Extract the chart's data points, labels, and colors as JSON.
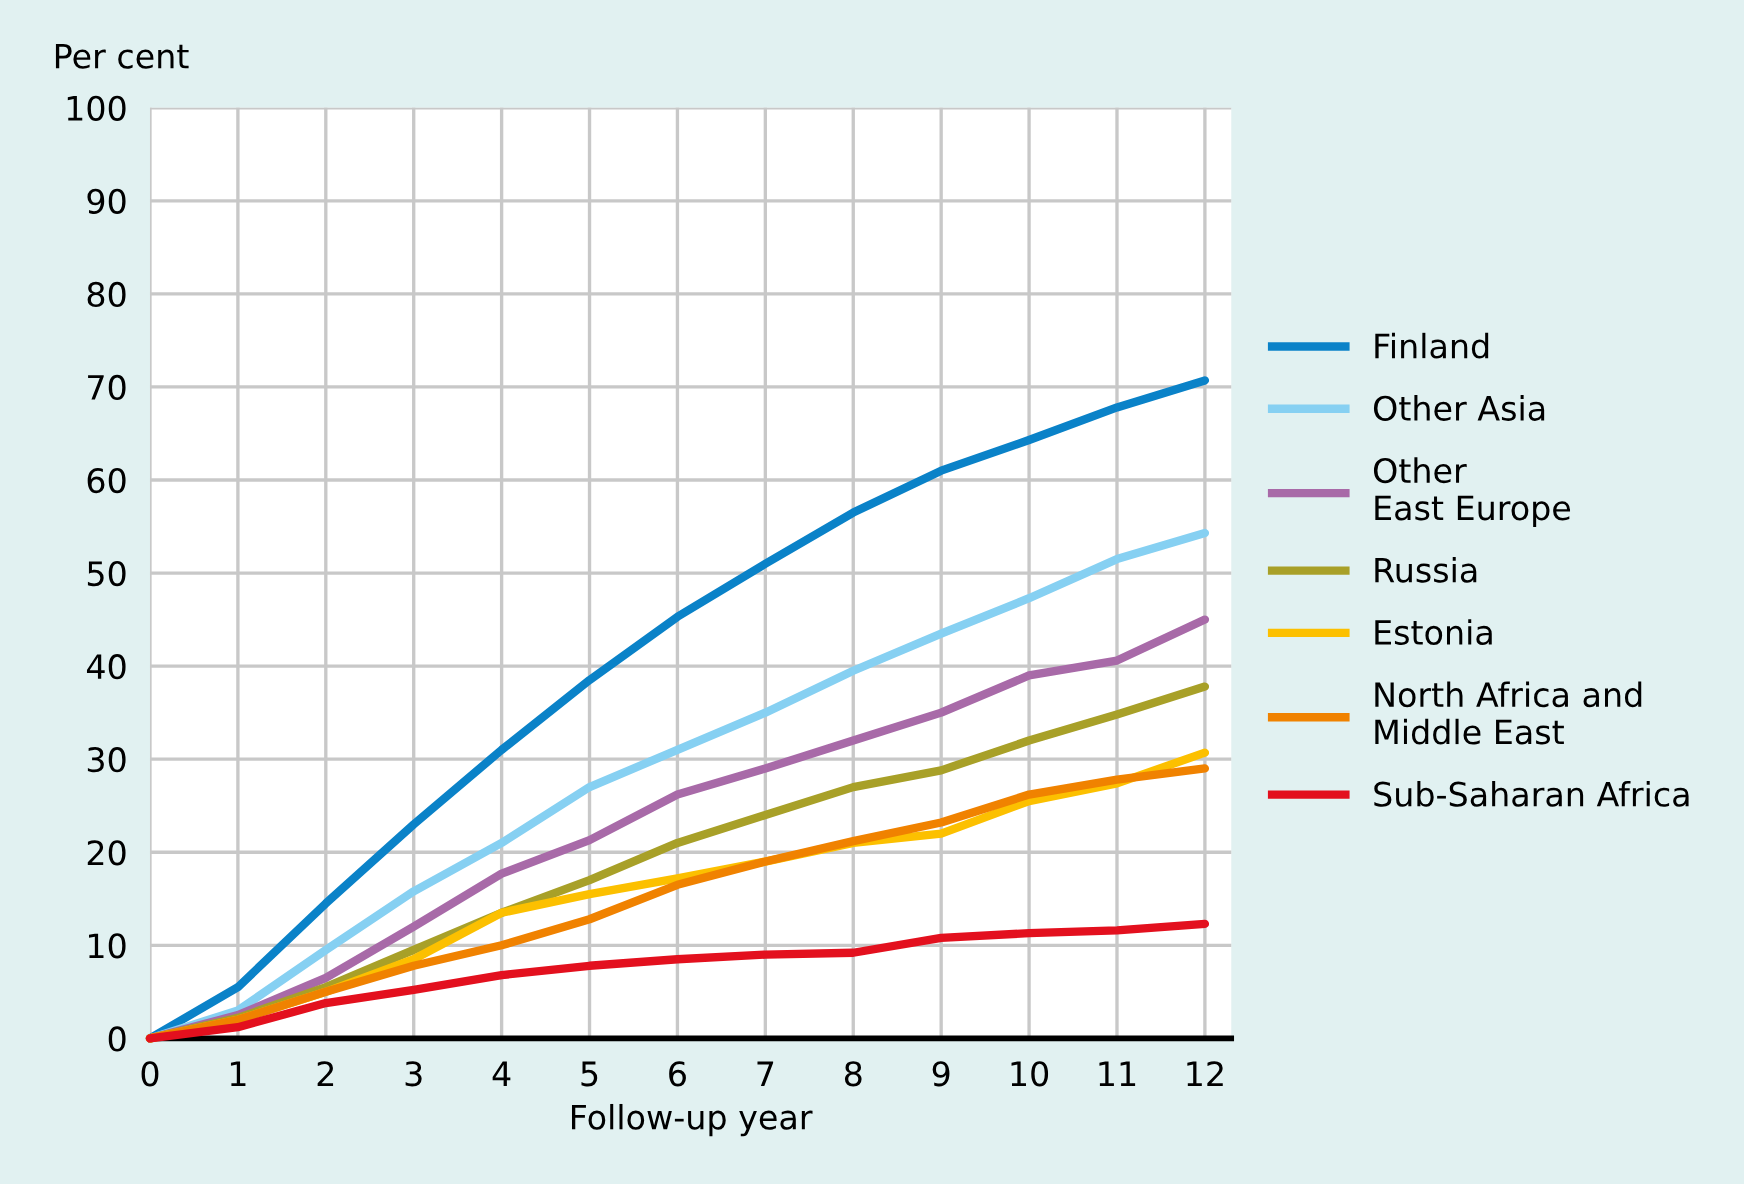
{
  "chart_data": {
    "type": "line",
    "ylabel": "Per cent",
    "xlabel": "Follow-up year",
    "x": [
      0,
      1,
      2,
      3,
      4,
      5,
      6,
      7,
      8,
      9,
      10,
      11,
      12
    ],
    "xlim": [
      0,
      12.3
    ],
    "xticks": [
      0,
      1,
      2,
      3,
      4,
      5,
      6,
      7,
      8,
      9,
      10,
      11,
      12
    ],
    "ylim": [
      0,
      100
    ],
    "yticks": [
      0,
      10,
      20,
      30,
      40,
      50,
      60,
      70,
      80,
      90,
      100
    ],
    "grid": true,
    "legend": "right",
    "marker": "none",
    "line_style": "solid",
    "series": [
      {
        "name": "Finland",
        "color": "#0a82c8",
        "values": [
          0,
          5.5,
          14.5,
          23,
          31,
          38.5,
          45.3,
          51,
          56.5,
          61,
          64.3,
          67.8,
          70.7
        ]
      },
      {
        "name": "Other Asia",
        "color": "#86d0f2",
        "values": [
          0,
          3,
          9.5,
          15.8,
          21,
          27,
          31,
          35,
          39.5,
          43.5,
          47.3,
          51.5,
          54.3
        ]
      },
      {
        "name": "Other\nEast Europe",
        "color": "#a86aa8",
        "values": [
          0,
          2.5,
          6.5,
          12,
          17.7,
          21.3,
          26.2,
          29,
          32,
          35,
          39,
          40.6,
          45
        ]
      },
      {
        "name": "Russia",
        "color": "#a8a028",
        "values": [
          0,
          2.2,
          5.5,
          9.5,
          13.5,
          17,
          21,
          24,
          27,
          28.8,
          32,
          34.8,
          37.8
        ]
      },
      {
        "name": "Estonia",
        "color": "#fcc000",
        "values": [
          0,
          2,
          5,
          8.5,
          13.5,
          15.5,
          17.2,
          19,
          21,
          22,
          25.5,
          27.4,
          30.7
        ]
      },
      {
        "name": "North Africa and\nMiddle East",
        "color": "#f08200",
        "values": [
          0,
          2,
          5,
          7.8,
          10,
          12.8,
          16.5,
          19,
          21.2,
          23.2,
          26.2,
          27.8,
          29
        ]
      },
      {
        "name": "Sub-Saharan Africa",
        "color": "#e3101e",
        "values": [
          0,
          1.2,
          3.8,
          5.2,
          6.8,
          7.8,
          8.5,
          9,
          9.2,
          10.8,
          11.3,
          11.6,
          12.3
        ]
      }
    ]
  }
}
